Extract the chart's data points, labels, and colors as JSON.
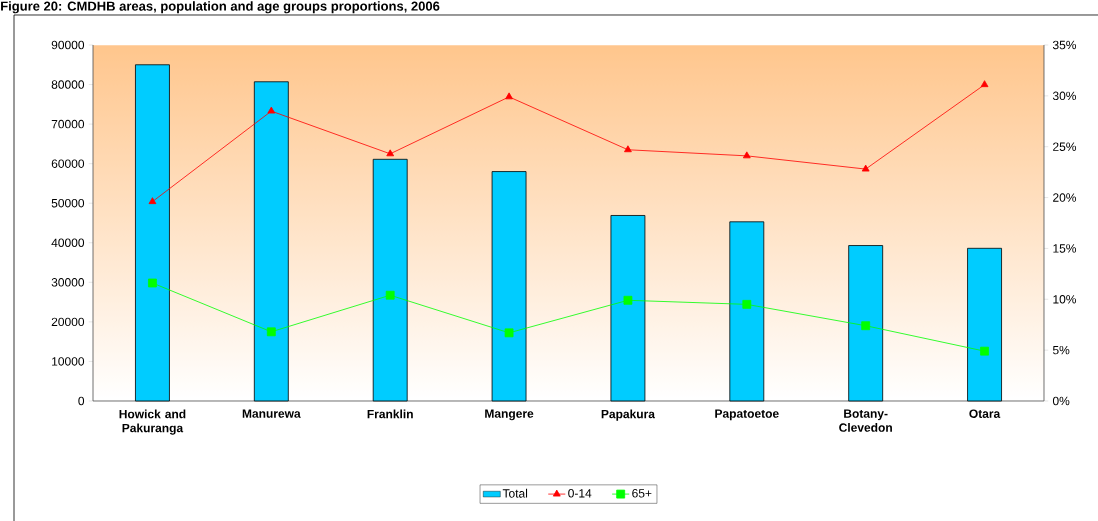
{
  "chart_data": {
    "type": "bar",
    "title": "Figure 20: CMDHB areas, population and age groups proportions, 2006",
    "categories": [
      "Howick and Pakuranga",
      "Manurewa",
      "Franklin",
      "Mangere",
      "Papakura",
      "Papatoetoe",
      "Botany-Clevedon",
      "Otara"
    ],
    "series": [
      {
        "name": "Total",
        "color": "#00ccff",
        "values": [
          85000,
          80700,
          61100,
          58000,
          46900,
          45300,
          39300,
          38600
        ]
      },
      {
        "name": "0-14",
        "type": "line",
        "axis": "y2",
        "color": "#ff0000",
        "marker": "triangle",
        "values": [
          19.6,
          28.5,
          24.3,
          29.9,
          24.7,
          24.1,
          22.8,
          31.1
        ]
      },
      {
        "name": "65+",
        "type": "line",
        "axis": "y2",
        "color": "#00ff00",
        "marker": "square",
        "values": [
          11.6,
          6.8,
          10.4,
          6.7,
          9.9,
          9.5,
          7.4,
          4.9
        ]
      }
    ],
    "ylim": [
      0,
      90000
    ],
    "yticks": [
      0,
      10000,
      20000,
      30000,
      40000,
      50000,
      60000,
      70000,
      80000,
      90000
    ],
    "y2lim": [
      0,
      35
    ],
    "y2ticks": [
      {
        "value": 0,
        "label": "0%"
      },
      {
        "value": 5,
        "label": "5%"
      },
      {
        "value": 10,
        "label": "10%"
      },
      {
        "value": 15,
        "label": "15%"
      },
      {
        "value": 20,
        "label": "20%"
      },
      {
        "value": 25,
        "label": "25%"
      },
      {
        "value": 30,
        "label": "30%"
      },
      {
        "value": 35,
        "label": "35%"
      }
    ],
    "legend": "bottom"
  }
}
